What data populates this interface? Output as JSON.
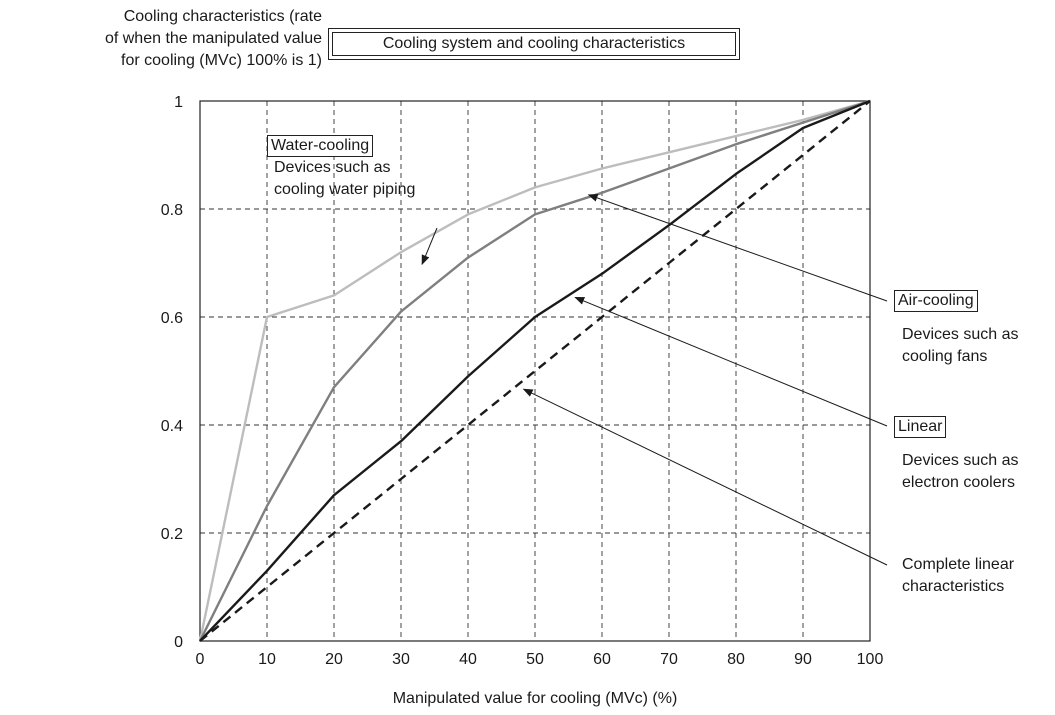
{
  "chart_data": {
    "type": "line",
    "title": "Cooling system and cooling characteristics",
    "ylabel": "Cooling characteristics (rate\nof when the manipulated value\nfor cooling (MVc) 100% is 1)",
    "xlabel": "Manipulated value for cooling (MVc) (%)",
    "x": [
      0,
      10,
      20,
      30,
      40,
      50,
      60,
      70,
      80,
      90,
      100
    ],
    "xticks": [
      "0",
      "10",
      "20",
      "30",
      "40",
      "50",
      "60",
      "70",
      "80",
      "90",
      "100"
    ],
    "yticks": [
      "0",
      "0.2",
      "0.4",
      "0.6",
      "0.8",
      "1"
    ],
    "xlim": [
      0,
      100
    ],
    "ylim": [
      0,
      1
    ],
    "grid": true,
    "series": [
      {
        "name": "Water-cooling",
        "color": "#bdbdbd",
        "dash": false,
        "values": [
          0,
          0.6,
          0.64,
          0.72,
          0.79,
          0.84,
          0.875,
          0.905,
          0.935,
          0.965,
          1.0
        ]
      },
      {
        "name": "Air-cooling",
        "color": "#7f7f7f",
        "dash": false,
        "values": [
          0,
          0.25,
          0.47,
          0.61,
          0.71,
          0.79,
          0.83,
          0.875,
          0.92,
          0.96,
          1.0
        ]
      },
      {
        "name": "Linear",
        "color": "#1a1a1a",
        "dash": false,
        "values": [
          0,
          0.13,
          0.27,
          0.37,
          0.49,
          0.6,
          0.68,
          0.77,
          0.865,
          0.95,
          1.0
        ]
      },
      {
        "name": "Complete linear characteristics",
        "color": "#1a1a1a",
        "dash": true,
        "values": [
          0,
          0.1,
          0.2,
          0.3,
          0.4,
          0.5,
          0.6,
          0.7,
          0.8,
          0.9,
          1.0
        ]
      }
    ],
    "annotations": {
      "water_label": "Water-cooling",
      "water_desc": "Devices such as\ncooling water piping",
      "air_label": "Air-cooling",
      "air_desc": "Devices such as\ncooling fans",
      "linear_label": "Linear",
      "linear_desc": "Devices such as\nelectron coolers",
      "complete_desc": "Complete linear\ncharacteristics"
    }
  }
}
